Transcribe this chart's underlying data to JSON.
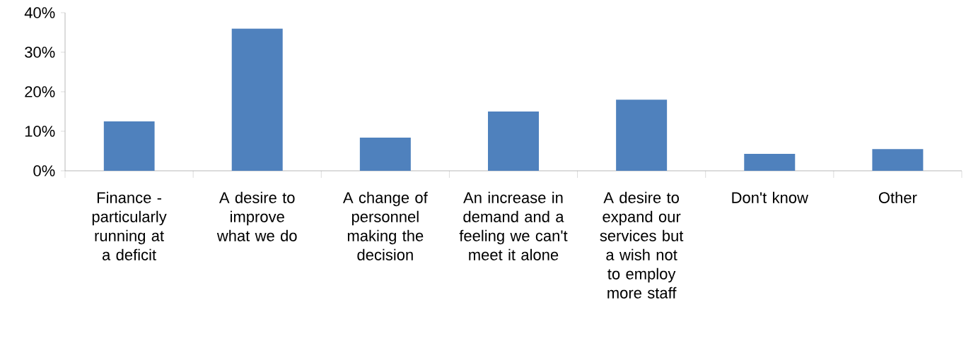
{
  "chart_data": {
    "type": "bar",
    "categories": [
      "Finance - particularly running at a deficit",
      "A desire to improve what we do",
      "A change of personnel making the decision",
      "An increase in demand and a feeling we can't meet it alone",
      "A desire to expand our services but a wish not to employ more staff",
      "Don't know",
      "Other"
    ],
    "values": [
      12.5,
      36,
      8.4,
      15,
      18,
      4.3,
      5.5
    ],
    "color": "#4f81bd",
    "ylim": [
      0,
      40
    ],
    "yticks": [
      {
        "value": 0,
        "label": "0%"
      },
      {
        "value": 10,
        "label": "10%"
      },
      {
        "value": 20,
        "label": "20%"
      },
      {
        "value": 30,
        "label": "30%"
      },
      {
        "value": 40,
        "label": "40%"
      }
    ],
    "grid": false
  }
}
